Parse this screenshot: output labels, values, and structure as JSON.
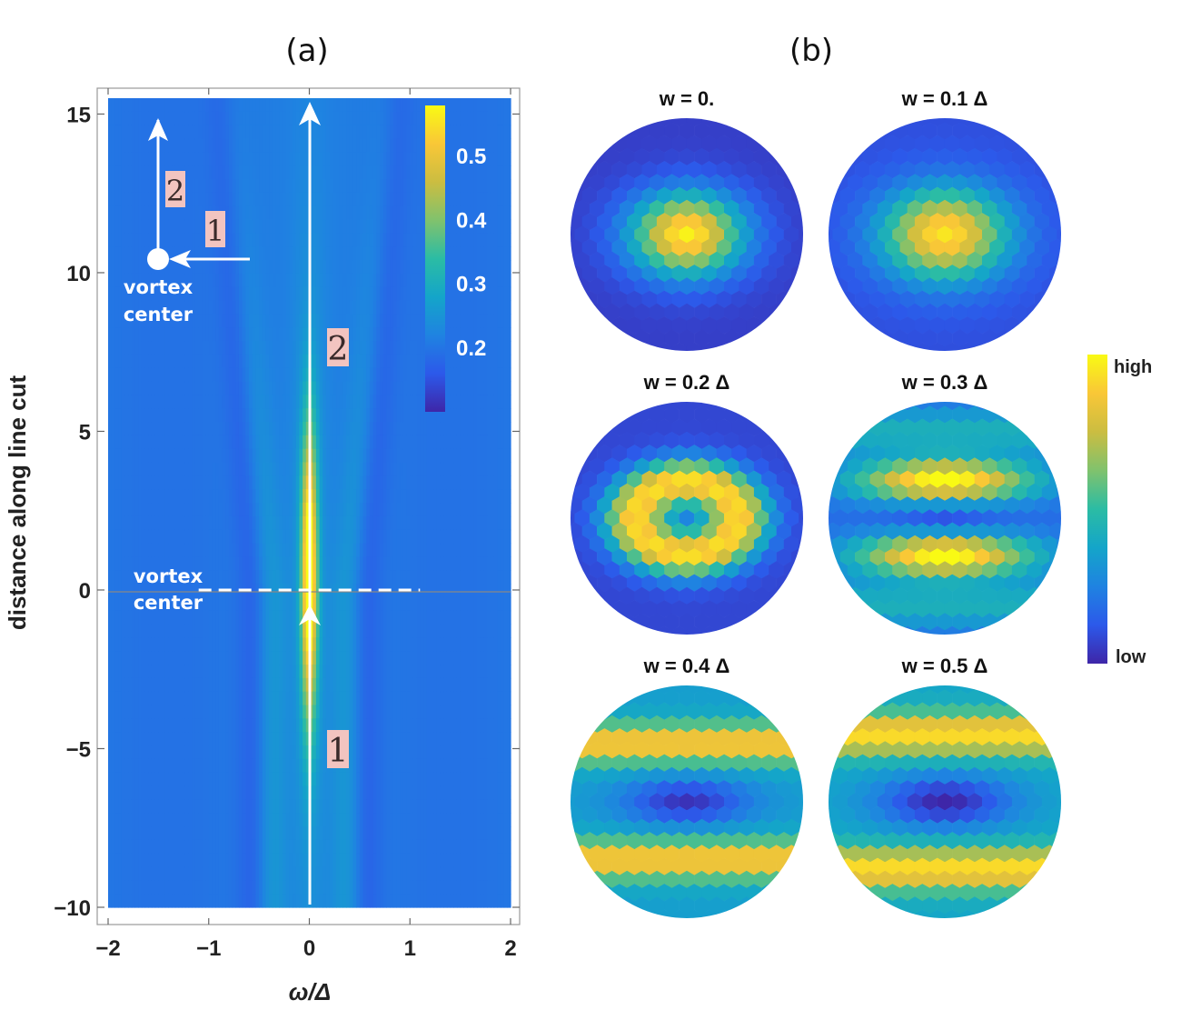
{
  "panel_labels": {
    "a": "(a)",
    "b": "(b)"
  },
  "chart_data": [
    {
      "type": "heatmap",
      "id": "a",
      "xlabel": "ω/Δ",
      "ylabel": "distance along line cut",
      "xlim": [
        -2,
        2
      ],
      "ylim": [
        -10,
        15.5
      ],
      "x_ticks": [
        -2,
        -1,
        0,
        1,
        2
      ],
      "x_tick_labels": [
        "−2",
        "−1",
        "0",
        "1",
        "2"
      ],
      "y_ticks": [
        -10,
        -5,
        0,
        5,
        10,
        15
      ],
      "y_tick_labels": [
        "−10",
        "−5",
        "0",
        "5",
        "10",
        "15"
      ],
      "colorbar": {
        "range": [
          0.1,
          0.58
        ],
        "ticks": [
          0.2,
          0.3,
          0.4,
          0.5
        ],
        "tick_labels": [
          "0.2",
          "0.3",
          "0.4",
          "0.5"
        ]
      },
      "vortex_center_y": 0,
      "vortex_line_x": [
        -1.1,
        1.1
      ],
      "annotations": {
        "vortex_label_line1": "vortex",
        "vortex_label_line2": "center",
        "inset_label_line1": "vortex",
        "inset_label_line2": "center",
        "path1": "1",
        "path2": "2",
        "inset_path1": "1",
        "inset_path2": "2"
      }
    },
    {
      "type": "heatmap",
      "id": "b",
      "colorbar": {
        "high_label": "high",
        "low_label": "low"
      },
      "panels": [
        {
          "title": "w = 0.",
          "w": 0.0
        },
        {
          "title": "w = 0.1 Δ",
          "w": 0.1
        },
        {
          "title": "w = 0.2 Δ",
          "w": 0.2
        },
        {
          "title": "w = 0.3 Δ",
          "w": 0.3
        },
        {
          "title": "w = 0.4 Δ",
          "w": 0.4
        },
        {
          "title": "w = 0.5 Δ",
          "w": 0.5
        }
      ]
    }
  ],
  "colors": {
    "parula": [
      "#3e26a8",
      "#2c59ea",
      "#1f83e1",
      "#14a5c9",
      "#2bbca4",
      "#80c26d",
      "#cbbd41",
      "#f9c737",
      "#f9fa14"
    ],
    "annotation_box": "#f2c4c0"
  }
}
